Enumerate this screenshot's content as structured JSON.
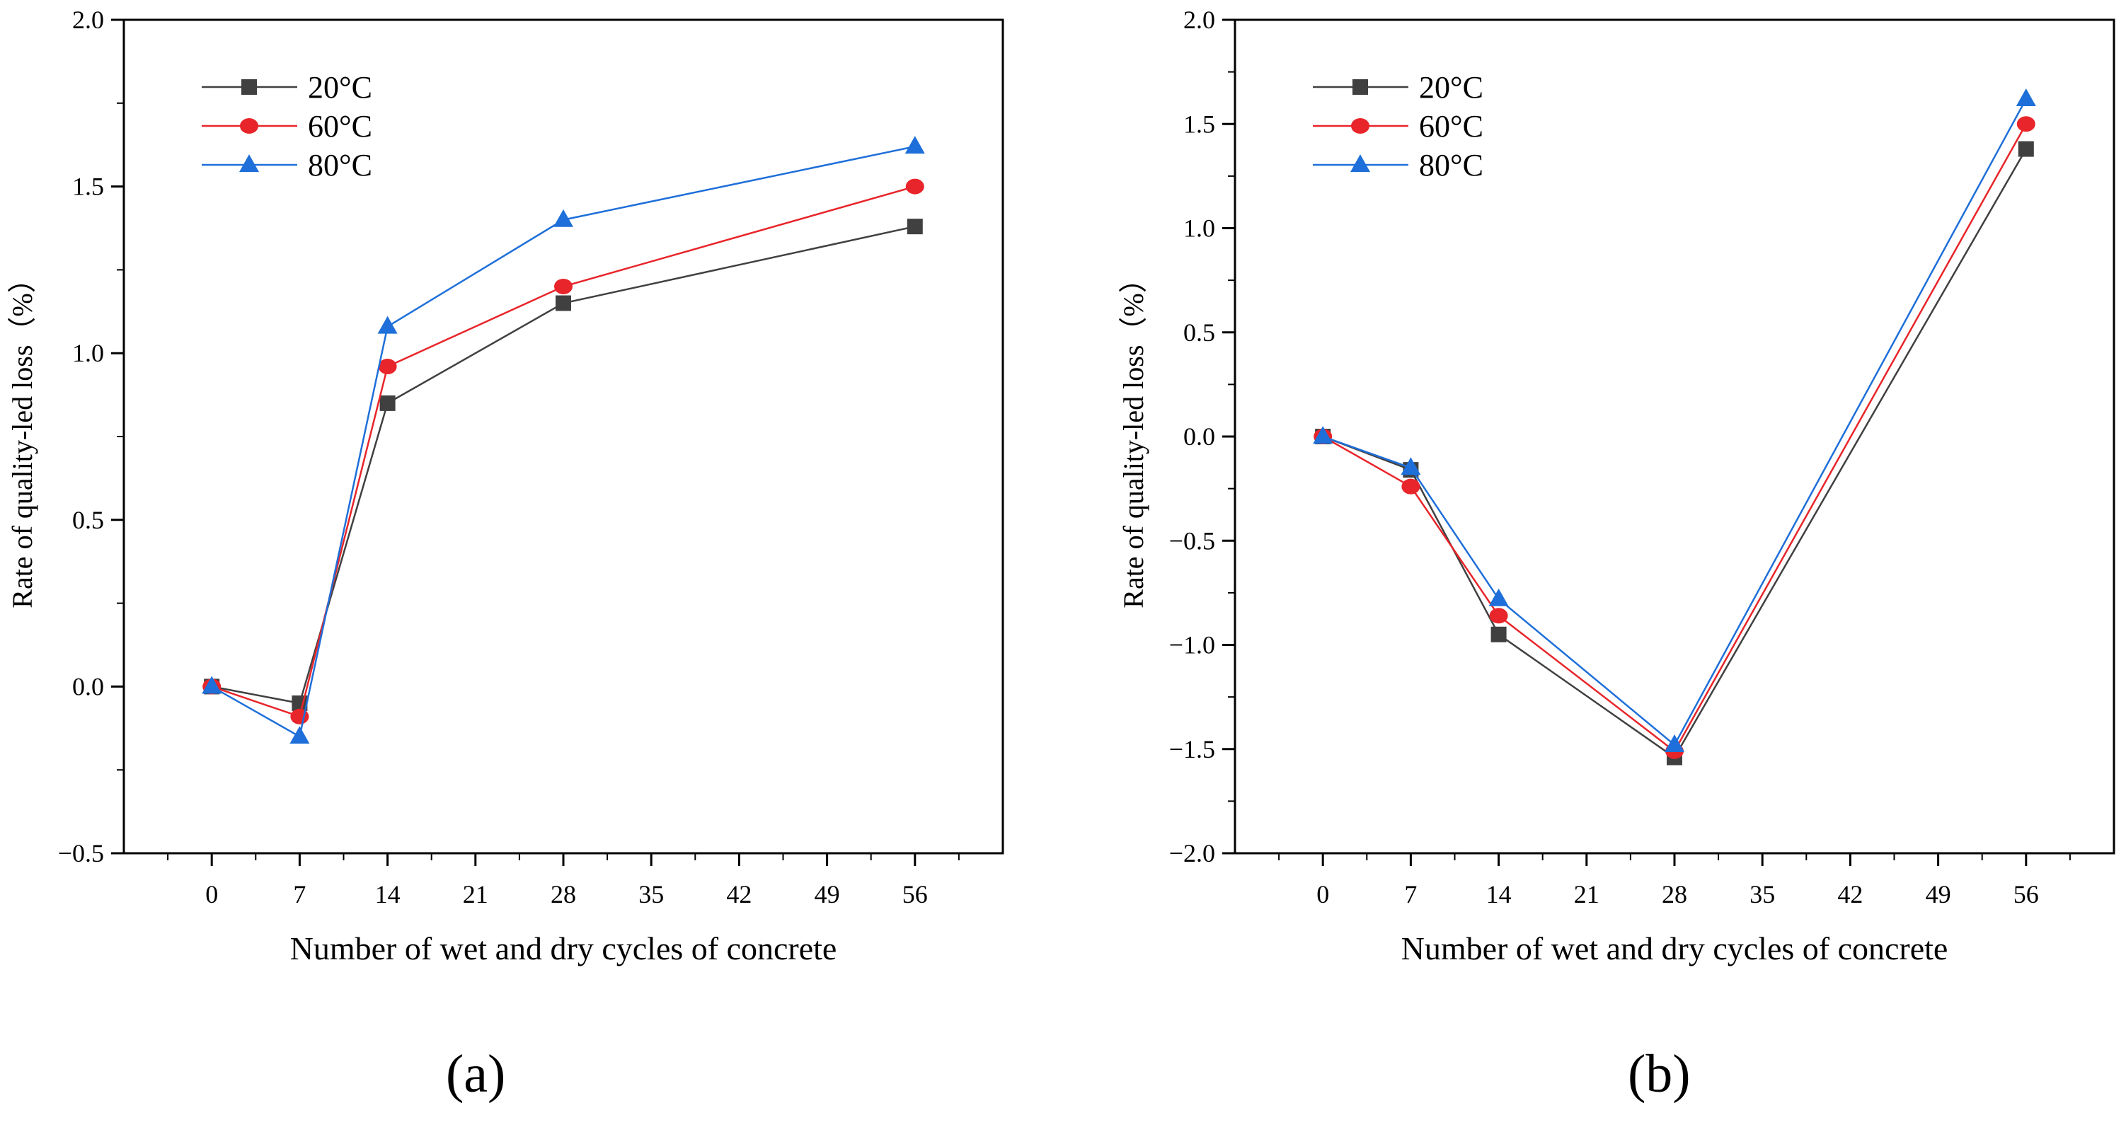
{
  "figure": {
    "panel_labels": [
      "(a)",
      "(b)"
    ]
  },
  "chart_data": [
    {
      "type": "line",
      "panel": "(a)",
      "xlabel": "Number of wet and dry cycles of concrete",
      "ylabel": "Rate of quality-led loss（%）",
      "xlim": [
        -7,
        63
      ],
      "ylim": [
        -0.5,
        2.0
      ],
      "xticks": [
        0,
        7,
        14,
        21,
        28,
        35,
        42,
        49,
        56
      ],
      "xtick_labels": [
        "0",
        "7",
        "14",
        "21",
        "28",
        "35",
        "42",
        "49",
        "56"
      ],
      "yticks": [
        -0.5,
        0.0,
        0.5,
        1.0,
        1.5,
        2.0
      ],
      "ytick_labels": [
        "−0.5",
        "0.0",
        "0.5",
        "1.0",
        "1.5",
        "2.0"
      ],
      "grid": false,
      "legend_position": "top-left",
      "series": [
        {
          "name": "20°C",
          "color": "#404040",
          "marker": "square",
          "x": [
            0,
            7,
            14,
            28,
            56
          ],
          "y": [
            0.0,
            -0.05,
            0.85,
            1.15,
            1.38
          ]
        },
        {
          "name": "60°C",
          "color": "#e8252a",
          "marker": "circle",
          "x": [
            0,
            7,
            14,
            28,
            56
          ],
          "y": [
            0.0,
            -0.09,
            0.96,
            1.2,
            1.5
          ]
        },
        {
          "name": "80°C",
          "color": "#1e6fd9",
          "marker": "triangle",
          "x": [
            0,
            7,
            14,
            28,
            56
          ],
          "y": [
            0.0,
            -0.15,
            1.08,
            1.4,
            1.62
          ]
        }
      ]
    },
    {
      "type": "line",
      "panel": "(b)",
      "xlabel": "Number of wet and dry cycles of concrete",
      "ylabel": "Rate of quality-led loss（%）",
      "xlim": [
        -7,
        63
      ],
      "ylim": [
        -2.0,
        2.0
      ],
      "xticks": [
        0,
        7,
        14,
        21,
        28,
        35,
        42,
        49,
        56
      ],
      "xtick_labels": [
        "0",
        "7",
        "14",
        "21",
        "28",
        "35",
        "42",
        "49",
        "56"
      ],
      "yticks": [
        -2.0,
        -1.5,
        -1.0,
        -0.5,
        0.0,
        0.5,
        1.0,
        1.5,
        2.0
      ],
      "ytick_labels": [
        "−2.0",
        "−1.5",
        "−1.0",
        "−0.5",
        "0.0",
        "0.5",
        "1.0",
        "1.5",
        "2.0"
      ],
      "grid": false,
      "legend_position": "top-left",
      "series": [
        {
          "name": "20°C",
          "color": "#404040",
          "marker": "square",
          "x": [
            0,
            7,
            14,
            28,
            56
          ],
          "y": [
            0.0,
            -0.16,
            -0.95,
            -1.54,
            1.38
          ]
        },
        {
          "name": "60°C",
          "color": "#e8252a",
          "marker": "circle",
          "x": [
            0,
            7,
            14,
            28,
            56
          ],
          "y": [
            0.0,
            -0.24,
            -0.86,
            -1.51,
            1.5
          ]
        },
        {
          "name": "80°C",
          "color": "#1e6fd9",
          "marker": "triangle",
          "x": [
            0,
            7,
            14,
            28,
            56
          ],
          "y": [
            0.0,
            -0.15,
            -0.78,
            -1.48,
            1.62
          ]
        }
      ]
    }
  ]
}
